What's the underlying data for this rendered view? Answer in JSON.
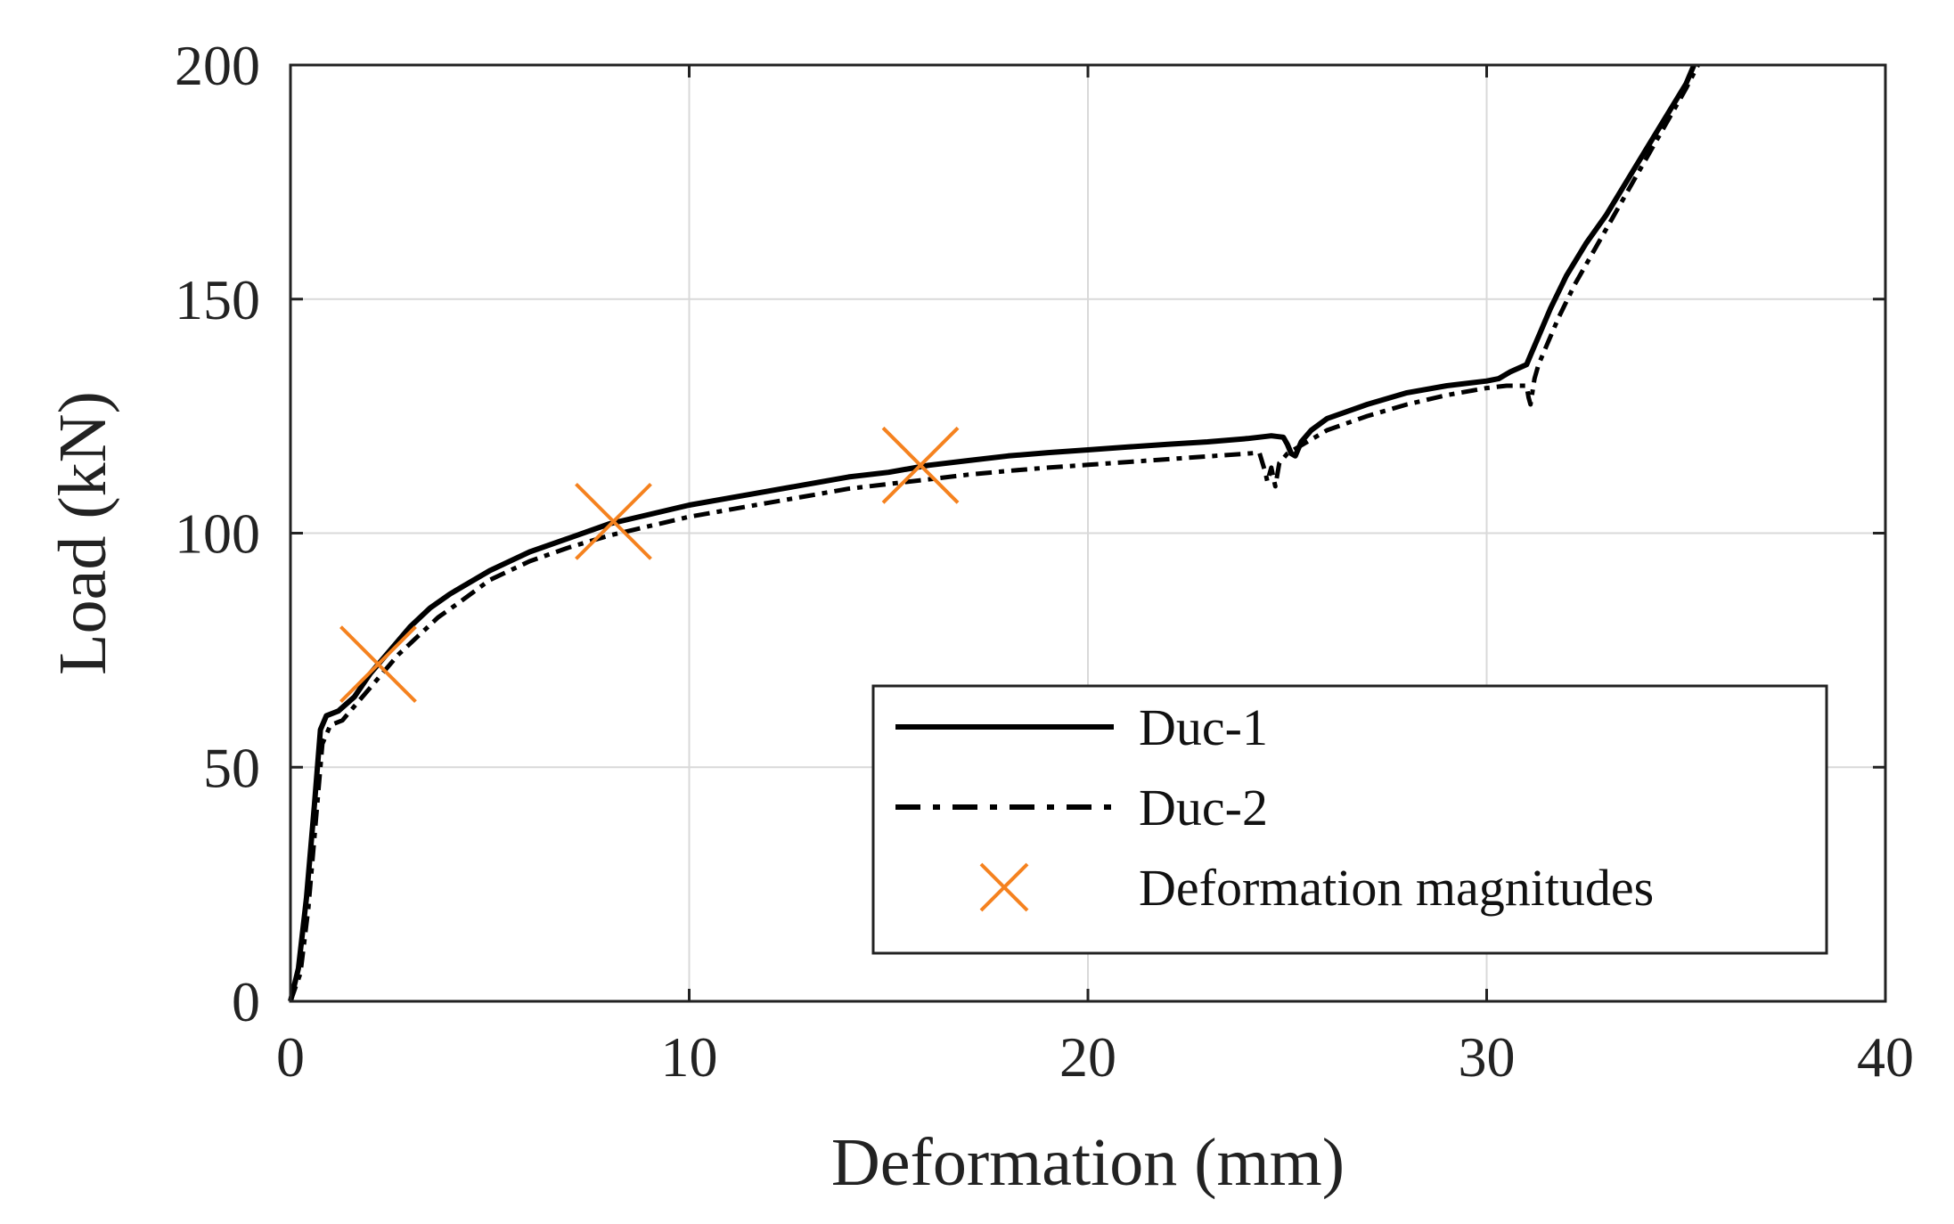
{
  "chart_data": {
    "type": "line",
    "title": "",
    "xlabel": "Deformation (mm)",
    "ylabel": "Load (kN)",
    "xlim": [
      0,
      40
    ],
    "ylim": [
      0,
      200
    ],
    "xticks": [
      0,
      10,
      20,
      30,
      40
    ],
    "yticks": [
      0,
      50,
      100,
      150,
      200
    ],
    "grid": true,
    "legend_position": "bottom-right",
    "colors": {
      "duc1": "#000000",
      "duc2": "#000000",
      "markers": "#F5821F"
    },
    "series": [
      {
        "name": "Duc-1",
        "style": "solid",
        "x": [
          0,
          0.2,
          0.4,
          0.6,
          0.75,
          0.9,
          1.2,
          1.6,
          2.0,
          2.5,
          3.0,
          3.5,
          4.0,
          5.0,
          6.0,
          7.0,
          8.0,
          9.0,
          10.0,
          11.0,
          12.0,
          13.0,
          14.0,
          15.0,
          16.0,
          17.0,
          18.0,
          19.0,
          20.0,
          21.0,
          22.0,
          23.0,
          24.0,
          24.6,
          24.9,
          25.0,
          25.1,
          25.2,
          25.35,
          25.6,
          26.0,
          27.0,
          28.0,
          29.0,
          30.0,
          30.3,
          30.6,
          31.0,
          31.1,
          31.3,
          31.6,
          32.0,
          32.5,
          33.0,
          34.0,
          35.0,
          35.2
        ],
        "y": [
          0,
          7,
          22,
          42,
          58,
          61,
          62,
          65,
          70,
          75,
          80,
          84,
          87,
          92,
          96,
          99,
          102,
          104,
          106,
          107.5,
          109,
          110.5,
          112,
          113,
          114.5,
          115.5,
          116.5,
          117.2,
          117.8,
          118.4,
          119,
          119.5,
          120.2,
          120.8,
          120.5,
          119,
          117,
          116.5,
          119.5,
          122,
          124.5,
          127.5,
          130,
          131.5,
          132.5,
          133,
          134.5,
          136,
          138,
          142,
          148,
          155,
          162,
          168,
          182,
          196,
          200
        ]
      },
      {
        "name": "Duc-2",
        "style": "dashed",
        "x": [
          0,
          0.25,
          0.45,
          0.65,
          0.8,
          1.0,
          1.3,
          1.7,
          2.2,
          2.7,
          3.2,
          3.7,
          4.2,
          5.0,
          6.0,
          7.0,
          8.0,
          9.0,
          10.0,
          11.0,
          12.0,
          13.0,
          14.0,
          15.0,
          16.0,
          17.0,
          18.0,
          19.0,
          20.0,
          21.0,
          22.0,
          23.0,
          24.0,
          24.3,
          24.45,
          24.5,
          24.6,
          24.7,
          24.8,
          25.0,
          25.5,
          26.0,
          27.0,
          28.0,
          29.0,
          30.0,
          30.5,
          31.0,
          31.05,
          31.1,
          31.2,
          31.3,
          31.5,
          31.8,
          32.2,
          33.0,
          34.0,
          35.0,
          35.3
        ],
        "y": [
          0,
          6,
          20,
          40,
          55,
          59,
          60,
          64,
          69,
          74,
          78,
          82,
          85,
          90,
          94,
          97,
          99.5,
          101.5,
          103.5,
          105,
          106.5,
          108,
          109.5,
          110.5,
          111.5,
          112.5,
          113.3,
          114,
          114.6,
          115.2,
          115.8,
          116.4,
          117,
          117.2,
          113,
          111,
          114,
          110,
          115,
          117,
          119.5,
          122,
          125,
          127.5,
          129.5,
          131,
          131.5,
          131.5,
          129,
          127.5,
          133,
          136,
          140,
          146,
          153,
          165,
          180,
          195,
          200
        ]
      },
      {
        "name": "Deformation magnitudes",
        "style": "markers-x",
        "x": [
          2.2,
          8.1,
          15.8
        ],
        "y": [
          72,
          102.5,
          114.5
        ]
      }
    ],
    "legend": [
      "Duc-1",
      "Duc-2",
      "Deformation magnitudes"
    ]
  }
}
